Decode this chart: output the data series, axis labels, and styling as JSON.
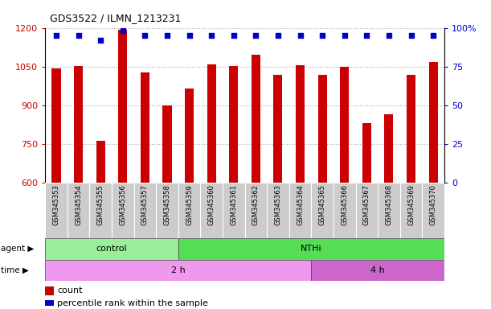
{
  "title": "GDS3522 / ILMN_1213231",
  "samples": [
    "GSM345353",
    "GSM345354",
    "GSM345355",
    "GSM345356",
    "GSM345357",
    "GSM345358",
    "GSM345359",
    "GSM345360",
    "GSM345361",
    "GSM345362",
    "GSM345363",
    "GSM345364",
    "GSM345365",
    "GSM345366",
    "GSM345367",
    "GSM345368",
    "GSM345369",
    "GSM345370"
  ],
  "counts": [
    1042,
    1052,
    762,
    1192,
    1028,
    898,
    965,
    1058,
    1052,
    1095,
    1018,
    1055,
    1018,
    1048,
    830,
    865,
    1018,
    1068
  ],
  "percentile_ranks": [
    95,
    95,
    92,
    98,
    95,
    95,
    95,
    95,
    95,
    95,
    95,
    95,
    95,
    95,
    95,
    95,
    95,
    95
  ],
  "ylim_left": [
    600,
    1200
  ],
  "yticks_left": [
    600,
    750,
    900,
    1050,
    1200
  ],
  "ylim_right": [
    0,
    100
  ],
  "yticks_right": [
    0,
    25,
    50,
    75,
    100
  ],
  "ylabel_left_color": "#cc0000",
  "ylabel_right_color": "#0000cc",
  "bar_color": "#cc0000",
  "dot_color": "#0000cc",
  "agent_groups": [
    {
      "label": "control",
      "start": 0,
      "end": 6,
      "color": "#99ee99"
    },
    {
      "label": "NTHi",
      "start": 6,
      "end": 18,
      "color": "#55dd55"
    }
  ],
  "time_groups": [
    {
      "label": "2 h",
      "start": 0,
      "end": 12,
      "color": "#ee99ee"
    },
    {
      "label": "4 h",
      "start": 12,
      "end": 18,
      "color": "#cc66cc"
    }
  ],
  "background_color": "#ffffff",
  "grid_color": "#aaaaaa",
  "tick_bg_color": "#cccccc",
  "agent_label": "agent",
  "time_label": "time",
  "legend_count_label": "count",
  "legend_percentile_label": "percentile rank within the sample",
  "bar_width": 0.4
}
